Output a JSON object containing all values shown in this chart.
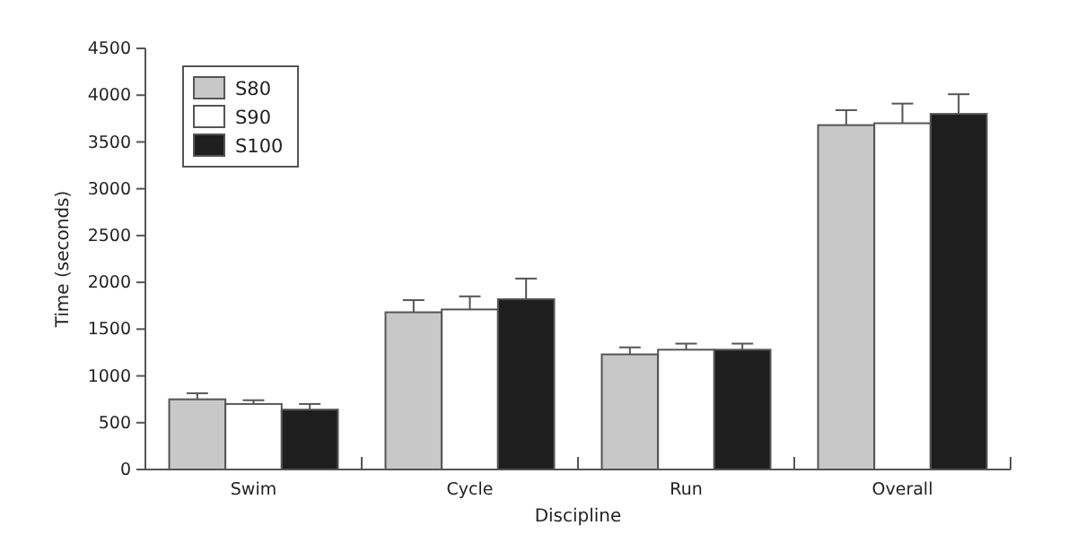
{
  "chart_data": {
    "type": "bar",
    "xlabel": "Discipline",
    "ylabel": "Time (seconds)",
    "categories": [
      "Swim",
      "Cycle",
      "Run",
      "Overall"
    ],
    "series": [
      {
        "name": "S80",
        "color": "#c8c8c8",
        "values": [
          750,
          1680,
          1230,
          3680
        ],
        "errors": [
          [
            750,
            815
          ],
          [
            1680,
            1810
          ],
          [
            1230,
            1305
          ],
          [
            3680,
            3840
          ]
        ]
      },
      {
        "name": "S90",
        "color": "#ffffff",
        "values": [
          700,
          1710,
          1280,
          3700
        ],
        "errors": [
          [
            700,
            740
          ],
          [
            1710,
            1850
          ],
          [
            1280,
            1345
          ],
          [
            3700,
            3910
          ]
        ]
      },
      {
        "name": "S100",
        "color": "#1e1e1e",
        "values": [
          640,
          1820,
          1280,
          3800
        ],
        "errors": [
          [
            640,
            700
          ],
          [
            1820,
            2040
          ],
          [
            1280,
            1345
          ],
          [
            3800,
            4010
          ]
        ]
      }
    ],
    "ylim": [
      0,
      4500
    ],
    "yticks": [
      0,
      500,
      1000,
      1500,
      2000,
      2500,
      3000,
      3500,
      4000,
      4500
    ],
    "grid": false,
    "legend": "top left"
  }
}
